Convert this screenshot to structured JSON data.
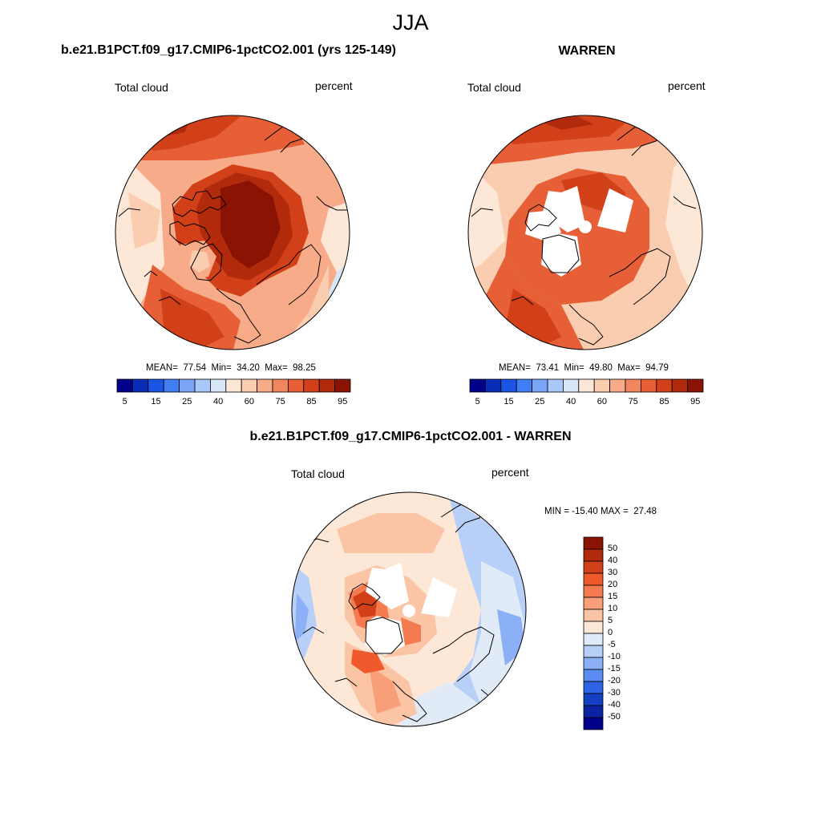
{
  "figure": {
    "season": "JJA"
  },
  "panels": [
    {
      "title": "b.e21.B1PCT.f09_g17.CMIP6-1pctCO2.001 (yrs 125-149)",
      "variable": "Total cloud",
      "units": "percent",
      "stats_text": "MEAN=  77.54  Min=  34.20  Max=  98.25"
    },
    {
      "title": "WARREN",
      "variable": "Total cloud",
      "units": "percent",
      "stats_text": "MEAN=  73.41  Min=  49.80  Max=  94.79"
    },
    {
      "title": "b.e21.B1PCT.f09_g17.CMIP6-1pctCO2.001 - WARREN",
      "variable": "Total cloud",
      "units": "percent",
      "stats_text": "MIN = -15.40 MAX =  27.48"
    }
  ],
  "colorbar_top": {
    "labels": [
      "5",
      "15",
      "25",
      "40",
      "60",
      "75",
      "85",
      "95"
    ],
    "colors": [
      "#00008b",
      "#0a2db8",
      "#1c55e6",
      "#3f7ef5",
      "#7aa5f7",
      "#a9c7f8",
      "#d6e6f7",
      "#fde8d8",
      "#fbcdb0",
      "#f8ab88",
      "#f1855d",
      "#e65f37",
      "#d2401a",
      "#b22a0c",
      "#8a1303"
    ]
  },
  "colorbar_diff": {
    "labels": [
      "50",
      "40",
      "30",
      "20",
      "15",
      "10",
      "5",
      "0",
      "-5",
      "-10",
      "-15",
      "-20",
      "-30",
      "-40",
      "-50"
    ],
    "colors": [
      "#8a1303",
      "#b22a0c",
      "#d2401a",
      "#ee5a2c",
      "#f47a4f",
      "#f89e79",
      "#fbc4a5",
      "#fde8d8",
      "#e0ebf7",
      "#b8d0f7",
      "#8bb0f6",
      "#5b8cf2",
      "#2e63e6",
      "#1440c4",
      "#0a23a0",
      "#00008b"
    ]
  },
  "chart_data": [
    {
      "type": "heatmap",
      "projection": "north-polar-stereographic",
      "title": "b.e21.B1PCT.f09_g17.CMIP6-1pctCO2.001 (yrs 125-149)",
      "field": "Total cloud",
      "units": "percent",
      "mean": 77.54,
      "min": 34.2,
      "max": 98.25,
      "levels": [
        5,
        10,
        15,
        20,
        25,
        30,
        40,
        50,
        60,
        70,
        75,
        80,
        85,
        90,
        95
      ]
    },
    {
      "type": "heatmap",
      "projection": "north-polar-stereographic",
      "title": "WARREN",
      "field": "Total cloud",
      "units": "percent",
      "mean": 73.41,
      "min": 49.8,
      "max": 94.79,
      "levels": [
        5,
        10,
        15,
        20,
        25,
        30,
        40,
        50,
        60,
        70,
        75,
        80,
        85,
        90,
        95
      ]
    },
    {
      "type": "heatmap",
      "projection": "north-polar-stereographic",
      "title": "b.e21.B1PCT.f09_g17.CMIP6-1pctCO2.001 - WARREN",
      "field": "Total cloud",
      "units": "percent",
      "min": -15.4,
      "max": 27.48,
      "levels": [
        -50,
        -40,
        -30,
        -20,
        -15,
        -10,
        -5,
        0,
        5,
        10,
        15,
        20,
        30,
        40,
        50
      ]
    }
  ]
}
